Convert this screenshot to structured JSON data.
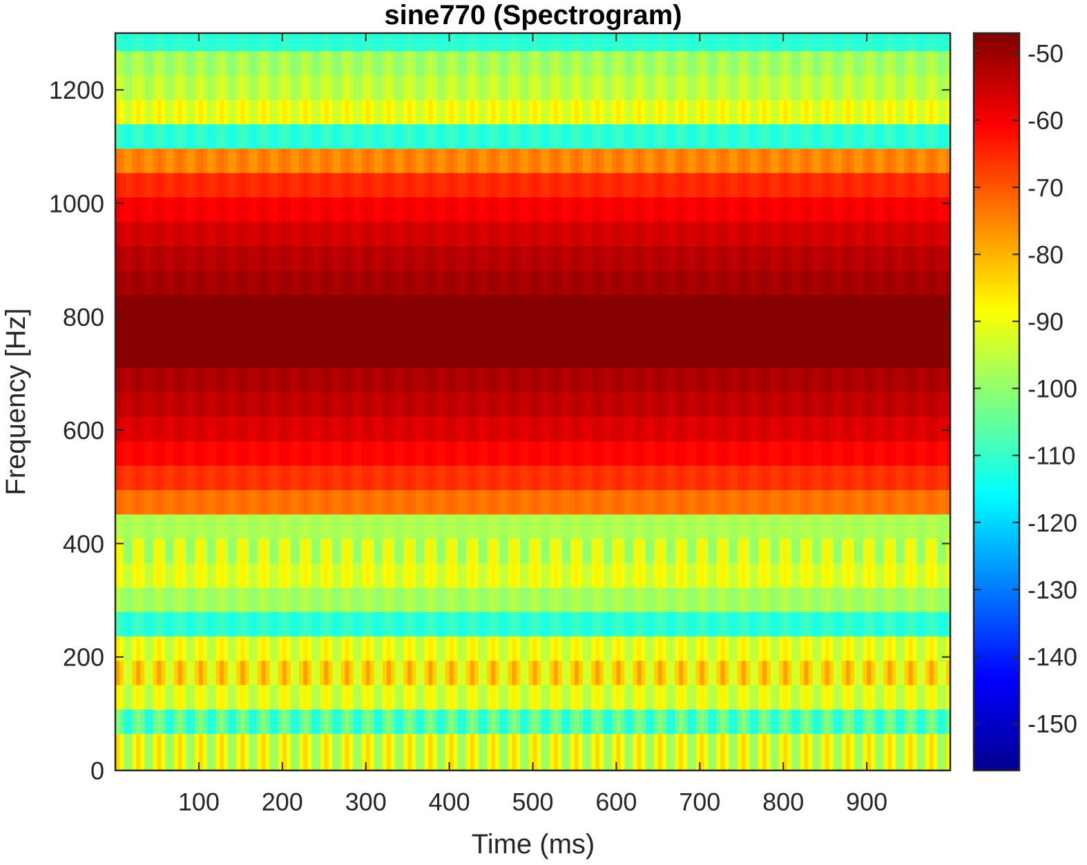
{
  "chart_data": {
    "type": "heatmap",
    "title": "sine770 (Spectrogram)",
    "xlabel": "Time (ms)",
    "ylabel": "Frequency [Hz]",
    "xlim": [
      0,
      1000
    ],
    "ylim": [
      0,
      1300
    ],
    "x_ticks": [
      100,
      200,
      300,
      400,
      500,
      600,
      700,
      800,
      900
    ],
    "y_ticks": [
      0,
      200,
      400,
      600,
      800,
      1000,
      1200
    ],
    "colorbar": {
      "colormap": "jet",
      "range": [
        -157,
        -47
      ],
      "ticks": [
        -50,
        -60,
        -70,
        -80,
        -90,
        -100,
        -110,
        -120,
        -130,
        -140,
        -150
      ]
    },
    "frequency_bands": [
      {
        "f0": 0,
        "f1": 65,
        "db": -92,
        "ripple": 8
      },
      {
        "f0": 65,
        "f1": 108,
        "db": -107,
        "ripple": 6
      },
      {
        "f0": 108,
        "f1": 151,
        "db": -92,
        "ripple": 5
      },
      {
        "f0": 151,
        "f1": 194,
        "db": -86,
        "ripple": 8
      },
      {
        "f0": 194,
        "f1": 237,
        "db": -91,
        "ripple": 5
      },
      {
        "f0": 237,
        "f1": 280,
        "db": -111,
        "ripple": 2
      },
      {
        "f0": 280,
        "f1": 323,
        "db": -98,
        "ripple": 2
      },
      {
        "f0": 323,
        "f1": 366,
        "db": -91,
        "ripple": 4
      },
      {
        "f0": 366,
        "f1": 409,
        "db": -94,
        "ripple": 7
      },
      {
        "f0": 409,
        "f1": 452,
        "db": -97,
        "ripple": 1
      },
      {
        "f0": 452,
        "f1": 495,
        "db": -73,
        "ripple": 1
      },
      {
        "f0": 495,
        "f1": 538,
        "db": -66,
        "ripple": 1
      },
      {
        "f0": 538,
        "f1": 581,
        "db": -61,
        "ripple": 1
      },
      {
        "f0": 581,
        "f1": 624,
        "db": -57,
        "ripple": 1
      },
      {
        "f0": 624,
        "f1": 667,
        "db": -54,
        "ripple": 1
      },
      {
        "f0": 667,
        "f1": 710,
        "db": -52,
        "ripple": 1
      },
      {
        "f0": 710,
        "f1": 839,
        "db": -48,
        "ripple": 0
      },
      {
        "f0": 839,
        "f1": 882,
        "db": -51,
        "ripple": 1
      },
      {
        "f0": 882,
        "f1": 925,
        "db": -53,
        "ripple": 1
      },
      {
        "f0": 925,
        "f1": 968,
        "db": -56,
        "ripple": 1
      },
      {
        "f0": 968,
        "f1": 1011,
        "db": -60,
        "ripple": 1
      },
      {
        "f0": 1011,
        "f1": 1054,
        "db": -65,
        "ripple": 1
      },
      {
        "f0": 1054,
        "f1": 1097,
        "db": -75,
        "ripple": 2
      },
      {
        "f0": 1097,
        "f1": 1140,
        "db": -111,
        "ripple": 2
      },
      {
        "f0": 1140,
        "f1": 1183,
        "db": -90,
        "ripple": 4
      },
      {
        "f0": 1183,
        "f1": 1226,
        "db": -95,
        "ripple": 3
      },
      {
        "f0": 1226,
        "f1": 1269,
        "db": -98,
        "ripple": 3
      },
      {
        "f0": 1269,
        "f1": 1300,
        "db": -111,
        "ripple": 1
      }
    ],
    "time_period_ms": 25
  }
}
